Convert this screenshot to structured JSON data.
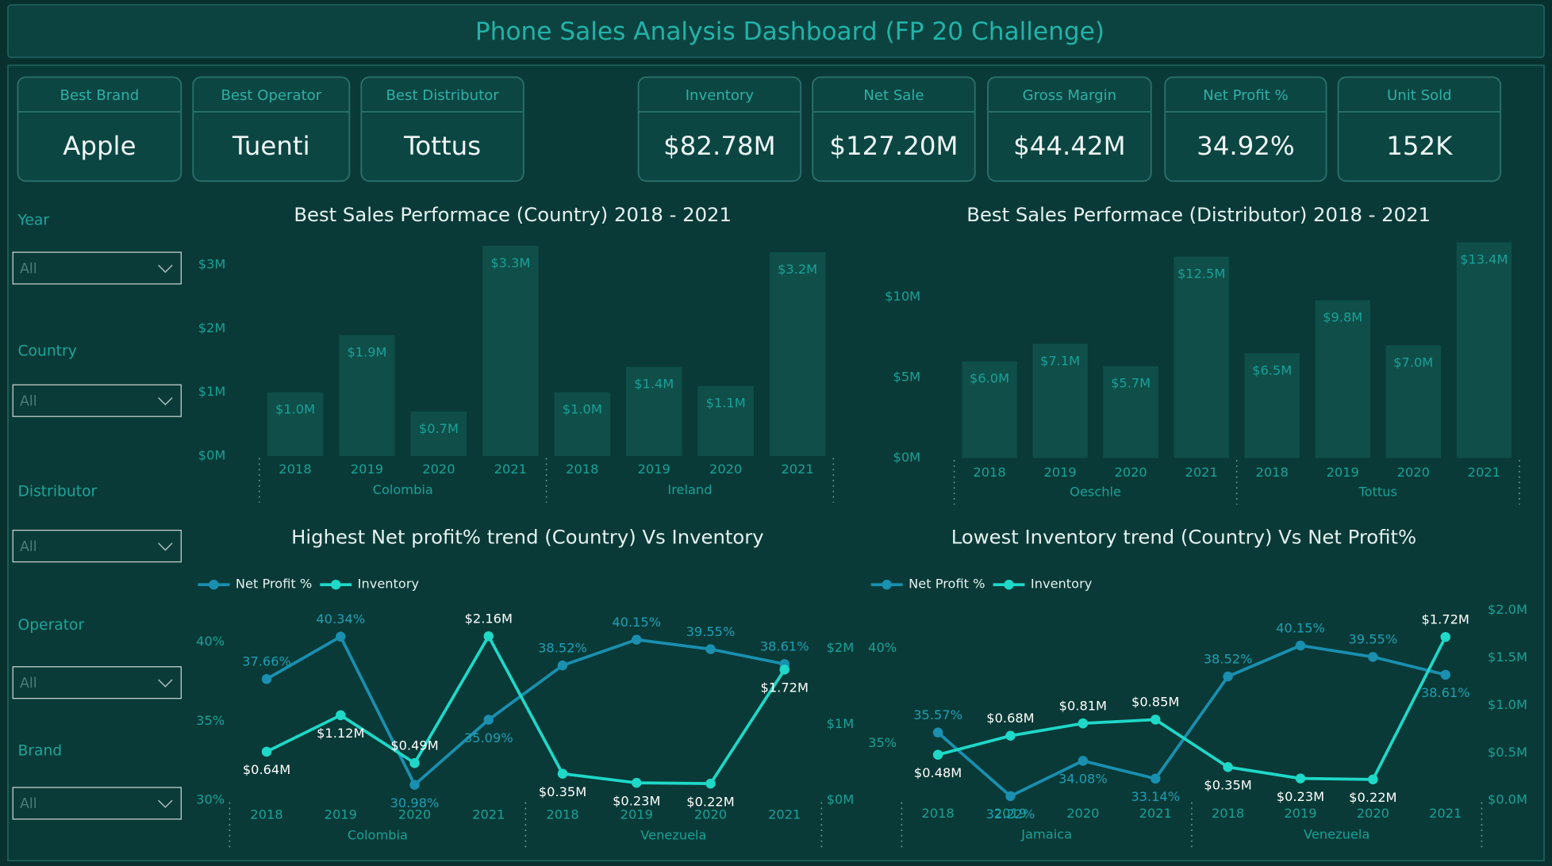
{
  "header": {
    "title": "Phone Sales Analysis Dashboard (FP 20 Challenge)"
  },
  "kpis": [
    {
      "label": "Best Brand",
      "value": "Apple"
    },
    {
      "label": "Best Operator",
      "value": "Tuenti"
    },
    {
      "label": "Best Distributor",
      "value": "Tottus"
    },
    {
      "label": "Inventory",
      "value": "$82.78M"
    },
    {
      "label": "Net Sale",
      "value": "$127.20M"
    },
    {
      "label": "Gross Margin",
      "value": "$44.42M"
    },
    {
      "label": "Net Profit %",
      "value": "34.92%"
    },
    {
      "label": "Unit Sold",
      "value": "152K"
    }
  ],
  "filters": [
    {
      "label": "Year",
      "value": "All"
    },
    {
      "label": "Country",
      "value": "All"
    },
    {
      "label": "Distributor",
      "value": "All"
    },
    {
      "label": "Operator",
      "value": "All"
    },
    {
      "label": "Brand",
      "value": "All"
    }
  ],
  "chart_data": [
    {
      "type": "bar",
      "title": "Best Sales Performace (Country) 2018 - 2021",
      "color": "#0f4e49",
      "groups": [
        {
          "name": "Colombia",
          "categories": [
            "2018",
            "2019",
            "2020",
            "2021"
          ],
          "values": [
            1.0,
            1.9,
            0.7,
            3.3
          ],
          "value_labels": [
            "$1.0M",
            "$1.9M",
            "$0.7M",
            "$3.3M"
          ]
        },
        {
          "name": "Ireland",
          "categories": [
            "2018",
            "2019",
            "2020",
            "2021"
          ],
          "values": [
            1.0,
            1.4,
            1.1,
            3.2
          ],
          "value_labels": [
            "$1.0M",
            "$1.4M",
            "$1.1M",
            "$3.2M"
          ]
        }
      ],
      "ylim": [
        0,
        3.4
      ],
      "yticks": [
        {
          "value": 0,
          "label": "$0M"
        },
        {
          "value": 1,
          "label": "$1M"
        },
        {
          "value": 2,
          "label": "$2M"
        },
        {
          "value": 3,
          "label": "$3M"
        }
      ]
    },
    {
      "type": "bar",
      "title": "Best Sales Performace (Distributor) 2018 - 2021",
      "color": "#0f4e49",
      "groups": [
        {
          "name": "Oeschle",
          "categories": [
            "2018",
            "2019",
            "2020",
            "2021"
          ],
          "values": [
            6.0,
            7.1,
            5.7,
            12.5
          ],
          "value_labels": [
            "$6.0M",
            "$7.1M",
            "$5.7M",
            "$12.5M"
          ]
        },
        {
          "name": "Tottus",
          "categories": [
            "2018",
            "2019",
            "2020",
            "2021"
          ],
          "values": [
            6.5,
            9.8,
            7.0,
            13.4
          ],
          "value_labels": [
            "$6.5M",
            "$9.8M",
            "$7.0M",
            "$13.4M"
          ]
        }
      ],
      "ylim": [
        0,
        14
      ],
      "yticks": [
        {
          "value": 0,
          "label": "$0M"
        },
        {
          "value": 5,
          "label": "$5M"
        },
        {
          "value": 10,
          "label": "$10M"
        }
      ]
    },
    {
      "type": "line",
      "title": "Highest Net profit% trend (Country) Vs Inventory",
      "groups": [
        {
          "name": "Colombia",
          "categories": [
            "2018",
            "2019",
            "2020",
            "2021"
          ]
        },
        {
          "name": "Venezuela",
          "categories": [
            "2018",
            "2019",
            "2020",
            "2021"
          ]
        }
      ],
      "series": [
        {
          "name": "Net Profit %",
          "color": "#1a8fb0",
          "values": [
            37.66,
            40.34,
            30.98,
            35.09,
            38.52,
            40.15,
            39.55,
            38.61
          ],
          "value_labels": [
            "37.66%",
            "40.34%",
            "30.98%",
            "35.09%",
            "38.52%",
            "40.15%",
            "39.55%",
            "38.61%"
          ]
        },
        {
          "name": "Inventory",
          "color": "#1fd8c8",
          "axis": "y2",
          "values": [
            0.64,
            1.12,
            0.49,
            2.16,
            0.35,
            0.23,
            0.22,
            1.72
          ],
          "value_labels": [
            "$0.64M",
            "$1.12M",
            "$0.49M",
            "$2.16M",
            "$0.35M",
            "$0.23M",
            "$0.22M",
            "$1.72M"
          ]
        }
      ],
      "ylim": [
        30,
        42
      ],
      "yticks": [
        {
          "value": 30,
          "label": "30%"
        },
        {
          "value": 35,
          "label": "35%"
        },
        {
          "value": 40,
          "label": "40%"
        }
      ],
      "y2lim": [
        0,
        2.5
      ],
      "y2ticks": [
        {
          "value": 0,
          "label": "$0M"
        },
        {
          "value": 1,
          "label": "$1M"
        },
        {
          "value": 2,
          "label": "$2M"
        }
      ]
    },
    {
      "type": "line",
      "title": "Lowest Inventory trend (Country) Vs Net Profit%",
      "groups": [
        {
          "name": "Jamaica",
          "categories": [
            "2018",
            "2019",
            "2020",
            "2021"
          ]
        },
        {
          "name": "Venezuela",
          "categories": [
            "2018",
            "2019",
            "2020",
            "2021"
          ]
        }
      ],
      "series": [
        {
          "name": "Net Profit %",
          "color": "#1a8fb0",
          "values": [
            35.57,
            32.22,
            34.08,
            33.14,
            38.52,
            40.15,
            39.55,
            38.61
          ],
          "value_labels": [
            "35.57%",
            "32.22%",
            "34.08%",
            "33.14%",
            "38.52%",
            "40.15%",
            "39.55%",
            "38.61%"
          ]
        },
        {
          "name": "Inventory",
          "color": "#1fd8c8",
          "axis": "y2",
          "values": [
            0.48,
            0.68,
            0.81,
            0.85,
            0.35,
            0.23,
            0.22,
            1.72
          ],
          "value_labels": [
            "$0.48M",
            "$0.68M",
            "$0.81M",
            "$0.85M",
            "$0.35M",
            "$0.23M",
            "$0.22M",
            "$1.72M"
          ]
        }
      ],
      "ylim": [
        32,
        42
      ],
      "yticks": [
        {
          "value": 35,
          "label": "35%"
        },
        {
          "value": 40,
          "label": "40%"
        }
      ],
      "y2lim": [
        0,
        2
      ],
      "y2ticks": [
        {
          "value": 0,
          "label": "$0.0M"
        },
        {
          "value": 0.5,
          "label": "$0.5M"
        },
        {
          "value": 1,
          "label": "$1.0M"
        },
        {
          "value": 1.5,
          "label": "$1.5M"
        },
        {
          "value": 2,
          "label": "$2.0M"
        }
      ]
    }
  ]
}
